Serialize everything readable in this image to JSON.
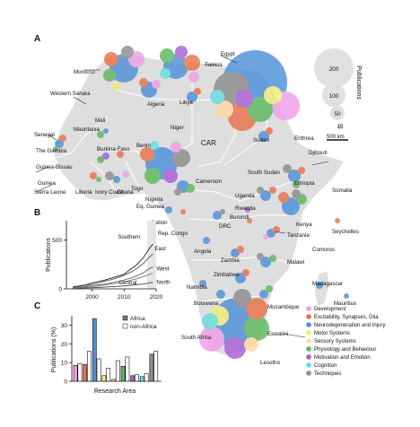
{
  "panels": {
    "a": "A",
    "b": "B",
    "c": "C"
  },
  "map": {
    "countries": [
      "Morocco",
      "Tunisia",
      "Egypt",
      "Western Sahara",
      "Algeria",
      "Libya",
      "Mali",
      "Mauritania",
      "Senegal",
      "The Gambia",
      "Guinea-Bissau",
      "Guinea",
      "Sierra Leone",
      "Liberia",
      "Ivory Coast",
      "Burkina Faso",
      "Ghana",
      "Togo",
      "Benin",
      "Nigeria",
      "Niger",
      "CAR",
      "Sudan",
      "South Sudan",
      "Erithrea",
      "Djibouti",
      "Ethiopia",
      "Somalia",
      "Cameroon",
      "Eq. Guinea",
      "Gebon",
      "Rep. Congo",
      "DRC",
      "Uganda",
      "Rwanda",
      "Burundi",
      "Kenya",
      "Tanzania",
      "Seychelles",
      "Comoros",
      "Angola",
      "Zambia",
      "Malawi",
      "Madagascar",
      "Mauritius",
      "Namibia",
      "Zimbabwe",
      "Botswana",
      "Mozambique",
      "South Africa",
      "Eswatini",
      "Lesotho"
    ],
    "colors": {
      "development": "#ee9fe8",
      "excitability_synapses_glia": "#e8724a",
      "neurodegeneration_and_injury": "#4e8fd8",
      "motor_systems": "#f0ec7a",
      "sensory_systems": "#ffd9a0",
      "physiology_and_behaviour": "#5cb85c",
      "motivation_and_emotion": "#a75fd4",
      "cognition": "#66dbe0",
      "techniques": "#8c8c8c"
    }
  },
  "size_legend": {
    "values": [
      "200",
      "100",
      "50",
      "10"
    ],
    "title": "Publications",
    "scale": "500 km"
  },
  "category_legend": [
    {
      "label": "Development",
      "color": "#ee9fe8"
    },
    {
      "label": "Excitability, Synapses, Glia",
      "color": "#e8724a"
    },
    {
      "label": "Neurodegeneration and Injury",
      "color": "#4e8fd8"
    },
    {
      "label": "Motor Systems",
      "color": "#f0ec7a"
    },
    {
      "label": "Sensory Systems",
      "color": "#ffd9a0"
    },
    {
      "label": "Physiology and Behaviour",
      "color": "#5cb85c"
    },
    {
      "label": "Motivation and Emotion",
      "color": "#a75fd4"
    },
    {
      "label": "Cognition",
      "color": "#66dbe0"
    },
    {
      "label": "Techniques",
      "color": "#8c8c8c"
    }
  ],
  "chart_data": [
    {
      "type": "line",
      "panel": "B",
      "ylabel": "Publications",
      "xlabel": "",
      "x_ticks": [
        "2000",
        "2010",
        "2020"
      ],
      "y_ticks": [
        "0",
        "500"
      ],
      "ylim": [
        0,
        700
      ],
      "xlim": [
        1992,
        2020
      ],
      "x": [
        1994,
        1996,
        1998,
        2000,
        2002,
        2004,
        2006,
        2008,
        2010,
        2012,
        2014,
        2016,
        2018,
        2019
      ],
      "series": [
        {
          "name": "Southern",
          "values": [
            20,
            30,
            40,
            60,
            75,
            90,
            110,
            130,
            150,
            200,
            250,
            320,
            420,
            460
          ]
        },
        {
          "name": "Central",
          "values": [
            5,
            8,
            10,
            12,
            15,
            18,
            22,
            26,
            30,
            36,
            42,
            50,
            60,
            66
          ]
        },
        {
          "name": "East",
          "values": [
            15,
            25,
            35,
            45,
            60,
            80,
            95,
            115,
            140,
            170,
            210,
            260,
            330,
            360
          ]
        },
        {
          "name": "West",
          "values": [
            10,
            15,
            22,
            30,
            40,
            50,
            62,
            75,
            90,
            110,
            135,
            165,
            210,
            225
          ]
        },
        {
          "name": "North",
          "values": [
            8,
            12,
            18,
            25,
            32,
            40,
            50,
            60,
            72,
            88,
            105,
            125,
            150,
            160
          ]
        }
      ]
    },
    {
      "type": "bar",
      "panel": "C",
      "ylabel": "Publications (%)",
      "xlabel": "Research Area",
      "y_ticks": [
        "0",
        "10",
        "20",
        "30"
      ],
      "ylim": [
        0,
        35
      ],
      "categories": [
        "Development",
        "Excitability, Synapses, Glia",
        "Neurodegeneration and Injury",
        "Motor Systems",
        "Sensory Systems",
        "Physiology and Behaviour",
        "Motivation and Emotion",
        "Cognition",
        "Techniques"
      ],
      "series": [
        {
          "name": "Africa",
          "values": [
            8.5,
            9,
            33.5,
            3,
            1,
            8,
            3,
            2.5,
            14.5
          ]
        },
        {
          "name": "non-Africa",
          "values": [
            9.5,
            16,
            12,
            7,
            11,
            13,
            3.5,
            4,
            16
          ]
        }
      ]
    }
  ]
}
